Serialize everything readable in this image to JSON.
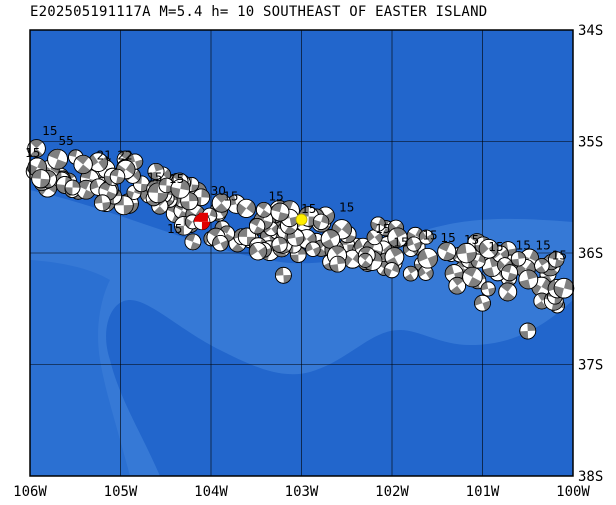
{
  "title": "E202505191117A M=5.4 h= 10 SOUTHEAST OF EASTER ISLAND",
  "lon_ticks": [
    "106W",
    "105W",
    "104W",
    "103W",
    "102W",
    "101W",
    "100W"
  ],
  "lat_ticks": [
    "34S",
    "35S",
    "36S",
    "37S",
    "38S"
  ],
  "extent": {
    "lon_min": -106,
    "lon_max": -100,
    "lat_min": -38,
    "lat_max": -34
  },
  "colors": {
    "ocean_deep": "#2266cc",
    "ocean_shallow": "#4a8ee0",
    "grid": "#000000",
    "mechanism_fill": "#808080",
    "epicenter": "#ffee00",
    "highlight": "#e00000"
  },
  "epicenter": {
    "lon": -103.0,
    "lat": -35.7
  },
  "highlight_mechanism": {
    "lon": -104.1,
    "lat": -35.72
  },
  "depth_labels": [
    {
      "text": "15",
      "lon": -105.78,
      "lat": -34.94
    },
    {
      "text": "15",
      "lon": -105.97,
      "lat": -35.14
    },
    {
      "text": "55",
      "lon": -105.6,
      "lat": -35.03
    },
    {
      "text": "21",
      "lon": -105.18,
      "lat": -35.16
    },
    {
      "text": "22",
      "lon": -104.95,
      "lat": -35.16
    },
    {
      "text": "15",
      "lon": -104.62,
      "lat": -35.36
    },
    {
      "text": "15",
      "lon": -104.38,
      "lat": -35.37
    },
    {
      "text": "30",
      "lon": -103.92,
      "lat": -35.48
    },
    {
      "text": "15",
      "lon": -103.78,
      "lat": -35.53
    },
    {
      "text": "15",
      "lon": -103.28,
      "lat": -35.53
    },
    {
      "text": "15",
      "lon": -102.92,
      "lat": -35.64
    },
    {
      "text": "15",
      "lon": -102.5,
      "lat": -35.63
    },
    {
      "text": "15",
      "lon": -102.1,
      "lat": -35.82
    },
    {
      "text": "15",
      "lon": -101.9,
      "lat": -35.94
    },
    {
      "text": "15",
      "lon": -101.58,
      "lat": -35.88
    },
    {
      "text": "15",
      "lon": -101.38,
      "lat": -35.9
    },
    {
      "text": "15",
      "lon": -101.12,
      "lat": -35.92
    },
    {
      "text": "15",
      "lon": -100.85,
      "lat": -35.98
    },
    {
      "text": "15",
      "lon": -100.55,
      "lat": -35.97
    },
    {
      "text": "15",
      "lon": -100.33,
      "lat": -35.97
    },
    {
      "text": "15",
      "lon": -100.15,
      "lat": -36.06
    },
    {
      "text": "15",
      "lon": -104.4,
      "lat": -35.82
    }
  ]
}
